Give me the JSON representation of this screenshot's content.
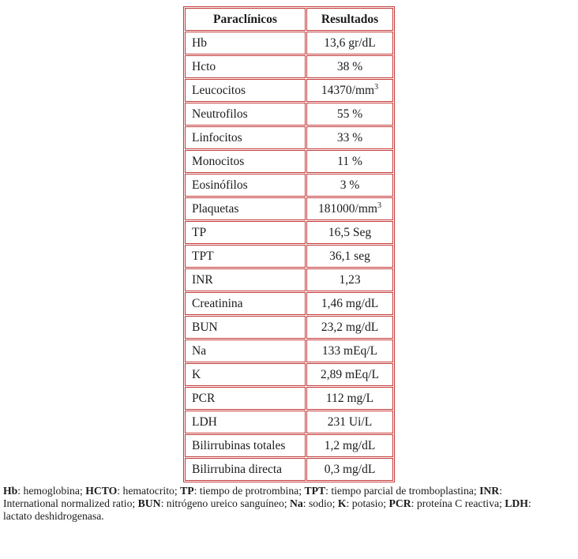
{
  "colors": {
    "table_border": "#c43b3c",
    "text": "#1b1b1b",
    "background": "#ffffff"
  },
  "table": {
    "headers": [
      "Paraclínicos",
      "Resultados"
    ],
    "rows": [
      {
        "label": "Hb",
        "value": "13,6 gr/dL"
      },
      {
        "label": "Hcto",
        "value": "38 %"
      },
      {
        "label": "Leucocitos",
        "value": "14370/mm",
        "sup": "3"
      },
      {
        "label": "Neutrofilos",
        "value": "55 %"
      },
      {
        "label": "Linfocitos",
        "value": "33 %"
      },
      {
        "label": "Monocitos",
        "value": "11 %"
      },
      {
        "label": "Eosinófilos",
        "value": "3 %"
      },
      {
        "label": "Plaquetas",
        "value": "181000/mm",
        "sup": "3"
      },
      {
        "label": "TP",
        "value": "16,5 Seg"
      },
      {
        "label": "TPT",
        "value": "36,1 seg"
      },
      {
        "label": "INR",
        "value": "1,23"
      },
      {
        "label": "Creatinina",
        "value": "1,46 mg/dL"
      },
      {
        "label": "BUN",
        "value": "23,2 mg/dL"
      },
      {
        "label": "Na",
        "value": "133 mEq/L"
      },
      {
        "label": "K",
        "value": "2,89 mEq/L"
      },
      {
        "label": "PCR",
        "value": "112 mg/L"
      },
      {
        "label": "LDH",
        "value": "231 Ui/L"
      },
      {
        "label": "Bilirrubinas totales",
        "value": "1,2 mg/dL"
      },
      {
        "label": "Bilirrubina directa",
        "value": "0,3 mg/dL"
      }
    ]
  },
  "footnote": {
    "segments": [
      {
        "term": "Hb",
        "rest": ": hemoglobina; "
      },
      {
        "term": "HCTO",
        "rest": ": hematocrito; "
      },
      {
        "term": "TP",
        "rest": ": tiempo de protrombina; "
      },
      {
        "term": "TPT",
        "rest": ": tiempo parcial de tromboplastina; "
      },
      {
        "term": "INR",
        "rest": ": International normalized ratio; "
      },
      {
        "term": "BUN",
        "rest": ": nitrógeno ureico sanguíneo; "
      },
      {
        "term": "Na",
        "rest": ": sodio; "
      },
      {
        "term": "K",
        "rest": ": potasio; "
      },
      {
        "term": "PCR",
        "rest": ": proteína C reactiva; "
      },
      {
        "term": "LDH",
        "rest": ": lactato deshidrogenasa."
      }
    ]
  }
}
